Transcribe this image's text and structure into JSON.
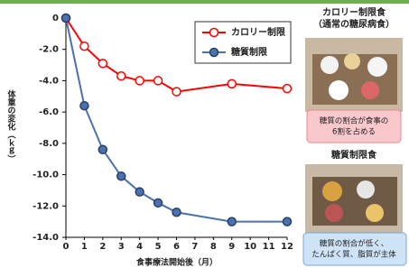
{
  "chart_data": {
    "type": "line",
    "xlabel": "食事療法開始後（月）",
    "ylabel": "体重の変化（ｋｇ）",
    "x": [
      0,
      1,
      2,
      3,
      4,
      5,
      6,
      9,
      12
    ],
    "series": [
      {
        "name": "カロリー制限",
        "color": "#ff0000",
        "values": [
          0,
          -1.8,
          -2.9,
          -3.7,
          -4.0,
          -4.0,
          -4.7,
          -4.2,
          -4.5
        ]
      },
      {
        "name": "糖質制限",
        "color": "#4a72b0",
        "values": [
          0,
          -5.6,
          -8.4,
          -10.1,
          -11.1,
          -11.8,
          -12.4,
          -13.0,
          -13.0
        ]
      }
    ],
    "xlim": [
      0,
      12
    ],
    "xticks": [
      0,
      1,
      2,
      3,
      4,
      5,
      6,
      7,
      8,
      9,
      10,
      11,
      12
    ],
    "ylim": [
      -14,
      0
    ],
    "yticks": [
      0,
      {
        "value": -2,
        "label": "-2.0"
      },
      {
        "value": -4,
        "label": "-4.0"
      },
      {
        "value": -6,
        "label": "-6.0"
      },
      {
        "value": -8,
        "label": "-8.0"
      },
      {
        "value": -10,
        "label": "-10.0"
      },
      {
        "value": -12,
        "label": "-12.0"
      },
      {
        "value": -14,
        "label": "-14.0"
      }
    ],
    "legend": "upper right",
    "grid": false
  },
  "side_panels": [
    {
      "title": [
        "カロリー制限食",
        "（通常の糖尿病食）"
      ],
      "note": [
        "糖質の割合が食事の",
        "6割を占める"
      ]
    },
    {
      "title": [
        "糖質制限食"
      ],
      "note": [
        "糖質の割合が低く、",
        "たんぱく質、脂質が主体"
      ]
    }
  ]
}
